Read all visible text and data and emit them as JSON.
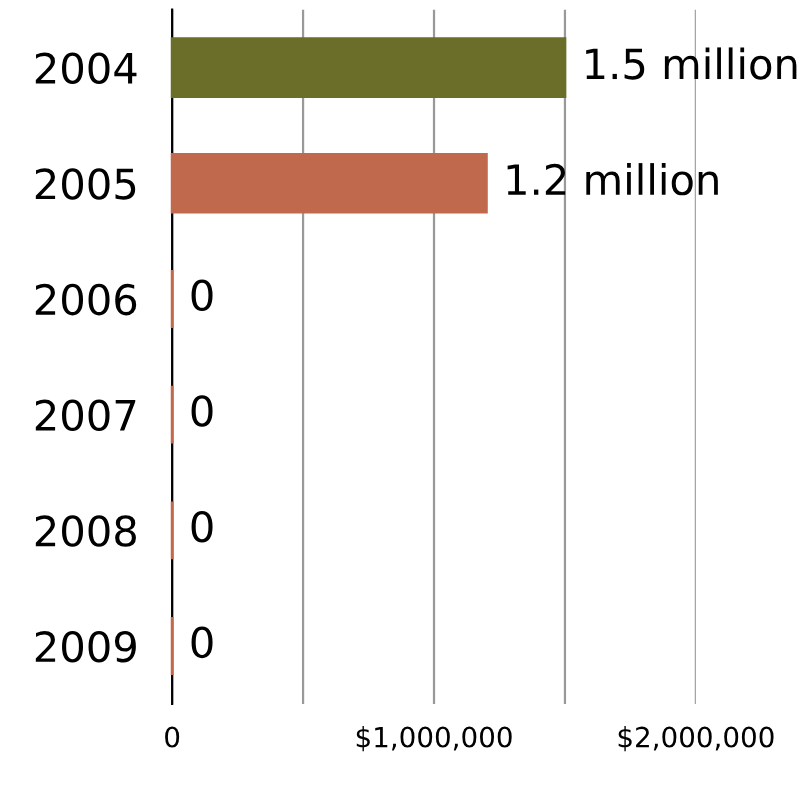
{
  "chart_data": {
    "type": "bar",
    "orientation": "horizontal",
    "categories": [
      "2004",
      "2005",
      "2006",
      "2007",
      "2008",
      "2009"
    ],
    "values": [
      1500000,
      1200000,
      0,
      0,
      0,
      0
    ],
    "colors": [
      "#6b6e28",
      "#c0694c",
      "#c0694c",
      "#c0694c",
      "#c0694c",
      "#c0694c"
    ],
    "value_labels": [
      "1.5 million",
      "1.2 million",
      "0",
      "0",
      "0",
      "0"
    ],
    "xlim": [
      0,
      2000000
    ],
    "xticks": [
      0,
      {
        "value": 500000,
        "label": null
      },
      {
        "value": 1000000,
        "label": "$1,000,000"
      },
      {
        "value": 1500000,
        "label": null
      },
      {
        "value": 2000000,
        "label": "$2,000,000"
      }
    ],
    "grid": "x"
  }
}
